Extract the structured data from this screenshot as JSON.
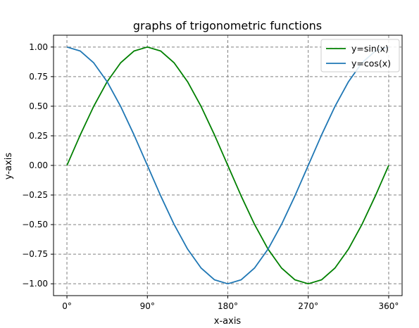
{
  "chart_data": {
    "type": "line",
    "title": "graphs of trigonometric functions",
    "xlabel": "x-axis",
    "ylabel": "y-axis",
    "xlim": [
      -15,
      375
    ],
    "ylim": [
      -1.1,
      1.1
    ],
    "x_ticks": [
      0,
      90,
      180,
      270,
      360
    ],
    "x_tick_labels": [
      "0°",
      "90°",
      "180°",
      "270°",
      "360°"
    ],
    "y_ticks": [
      1.0,
      0.75,
      0.5,
      0.25,
      0.0,
      -0.25,
      -0.5,
      -0.75,
      -1.0
    ],
    "y_tick_labels": [
      "1.00",
      "0.75",
      "0.50",
      "0.25",
      "0.00",
      "−0.25",
      "−0.50",
      "−0.75",
      "−1.00"
    ],
    "grid": true,
    "legend_position": "top-right",
    "x": [
      0,
      15,
      30,
      45,
      60,
      75,
      90,
      105,
      120,
      135,
      150,
      165,
      180,
      195,
      210,
      225,
      240,
      255,
      270,
      285,
      300,
      315,
      330,
      345,
      360
    ],
    "series": [
      {
        "name": "y=sin(x)",
        "color": "#008000",
        "values": [
          0.0,
          0.259,
          0.5,
          0.707,
          0.866,
          0.966,
          1.0,
          0.966,
          0.866,
          0.707,
          0.5,
          0.259,
          0.0,
          -0.259,
          -0.5,
          -0.707,
          -0.866,
          -0.966,
          -1.0,
          -0.966,
          -0.866,
          -0.707,
          -0.5,
          -0.259,
          0.0
        ]
      },
      {
        "name": "y=cos(x)",
        "color": "#1f77b4",
        "values": [
          1.0,
          0.966,
          0.866,
          0.707,
          0.5,
          0.259,
          0.0,
          -0.259,
          -0.5,
          -0.707,
          -0.866,
          -0.966,
          -1.0,
          -0.966,
          -0.866,
          -0.707,
          -0.5,
          -0.259,
          0.0,
          0.259,
          0.5,
          0.707,
          0.866,
          0.966,
          1.0
        ]
      }
    ]
  }
}
